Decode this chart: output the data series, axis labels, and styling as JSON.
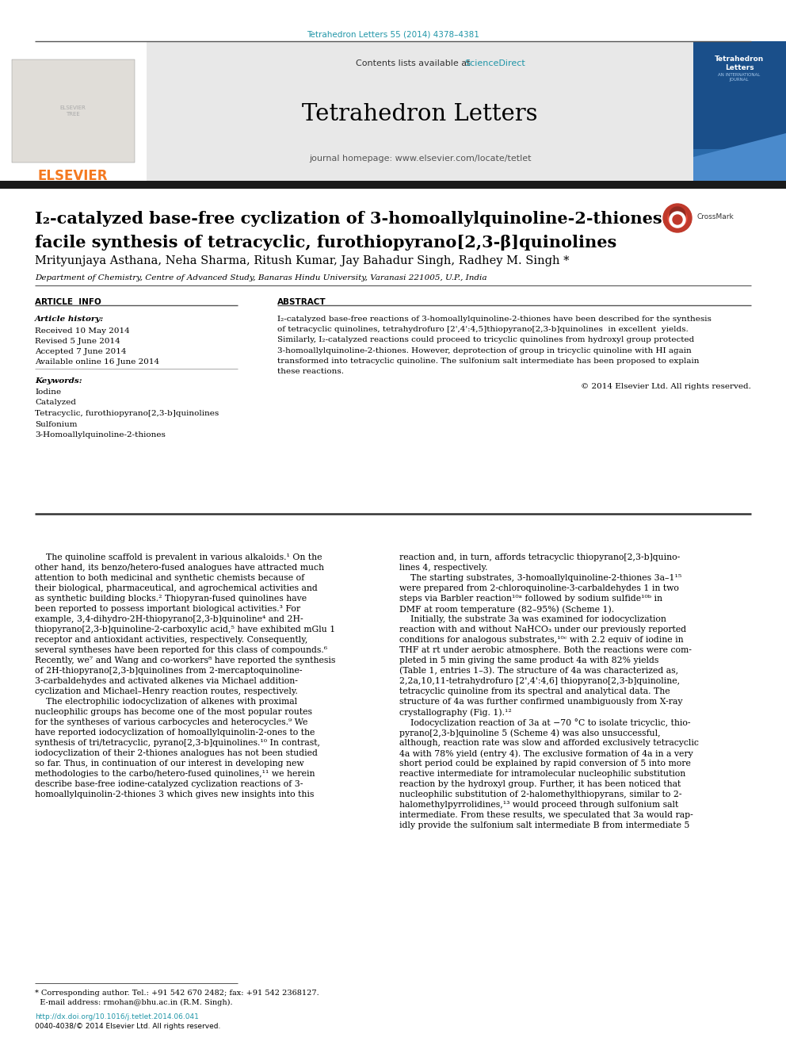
{
  "doi_line": "Tetrahedron Letters 55 (2014) 4378–4381",
  "journal_name": "Tetrahedron Letters",
  "contents_line": "Contents lists available at ",
  "science_direct": "ScienceDirect",
  "journal_homepage": "journal homepage: www.elsevier.com/locate/tetlet",
  "title_line1": "I₂-catalyzed base-free cyclization of 3-homoallylquinoline-2-thiones:",
  "title_line2": "facile synthesis of tetracyclic, furothiopyrano[2,3-β]quinolines",
  "authors": "Mrityunjaya Asthana, Neha Sharma, Ritush Kumar, Jay Bahadur Singh, Radhey M. Singh *",
  "affiliation": "Department of Chemistry, Centre of Advanced Study, Banaras Hindu University, Varanasi 221005, U.P., India",
  "article_info_header": "ARTICLE  INFO",
  "abstract_header": "ABSTRACT",
  "article_history_label": "Article history:",
  "received": "Received 10 May 2014",
  "revised": "Revised 5 June 2014",
  "accepted": "Accepted 7 June 2014",
  "available": "Available online 16 June 2014",
  "keywords_label": "Keywords:",
  "keywords": [
    "Iodine",
    "Catalyzed",
    "Tetracyclic, furothiopyrano[2,3-b]quinolines",
    "Sulfonium",
    "3-Homoallylquinoline-2-thiones"
  ],
  "abstract_lines": [
    "I₂-catalyzed base-free reactions of 3-homoallylquinoline-2-thiones have been described for the synthesis",
    "of tetracyclic quinolines, tetrahydrofuro [2',4':4,5]thiopyrano[2,3-b]quinolines  in excellent  yields.",
    "Similarly, I₂-catalyzed reactions could proceed to tricyclic quinolines from hydroxyl group protected",
    "3-homoallylquinoline-2-thiones. However, deprotection of group in tricyclic quinoline with HI again",
    "transformed into tetracyclic quinoline. The sulfonium salt intermediate has been proposed to explain",
    "these reactions."
  ],
  "copyright": "© 2014 Elsevier Ltd. All rights reserved.",
  "col1_lines": [
    "    The quinoline scaffold is prevalent in various alkaloids.¹ On the",
    "other hand, its benzo/hetero-fused analogues have attracted much",
    "attention to both medicinal and synthetic chemists because of",
    "their biological, pharmaceutical, and agrochemical activities and",
    "as synthetic building blocks.² Thiopyran-fused quinolines have",
    "been reported to possess important biological activities.³ For",
    "example, 3,4-dihydro-2H-thiopyrano[2,3-b]quinoline⁴ and 2H-",
    "thiopyrano[2,3-b]quinoline-2-carboxylic acid,⁵ have exhibited mGlu 1",
    "receptor and antioxidant activities, respectively. Consequently,",
    "several syntheses have been reported for this class of compounds.⁶",
    "Recently, we⁷ and Wang and co-workers⁸ have reported the synthesis",
    "of 2H-thiopyrano[2,3-b]quinolines from 2-mercaptoquinoline-",
    "3-carbaldehydes and activated alkenes via Michael addition-",
    "cyclization and Michael–Henry reaction routes, respectively.",
    "    The electrophilic iodocyclization of alkenes with proximal",
    "nucleophilic groups has become one of the most popular routes",
    "for the syntheses of various carbocycles and heterocycles.⁹ We",
    "have reported iodocyclization of homoallylquinolin-2-ones to the",
    "synthesis of tri/tetracyclic, pyrano[2,3-b]quinolines.¹⁰ In contrast,",
    "iodocyclization of their 2-thiones analogues has not been studied",
    "so far. Thus, in continuation of our interest in developing new",
    "methodologies to the carbo/hetero-fused quinolines,¹¹ we herein",
    "describe base-free iodine-catalyzed cyclization reactions of 3-",
    "homoallylquinolin-2-thiones 3 which gives new insights into this"
  ],
  "col2_lines": [
    "reaction and, in turn, affords tetracyclic thiopyrano[2,3-b]quino-",
    "lines 4, respectively.",
    "    The starting substrates, 3-homoallylquinoline-2-thiones 3a–1¹⁵",
    "were prepared from 2-chloroquinoline-3-carbaldehydes 1 in two",
    "steps via Barbler reaction¹⁰ᵃ followed by sodium sulfide¹⁰ᵇ in",
    "DMF at room temperature (82–95%) (Scheme 1).",
    "    Initially, the substrate 3a was examined for iodocyclization",
    "reaction with and without NaHCO₃ under our previously reported",
    "conditions for analogous substrates,¹⁰ᶜ with 2.2 equiv of iodine in",
    "THF at rt under aerobic atmosphere. Both the reactions were com-",
    "pleted in 5 min giving the same product 4a with 82% yields",
    "(Table 1, entries 1–3). The structure of 4a was characterized as,",
    "2,2a,10,11-tetrahydrofuro [2',4':4,6] thiopyrano[2,3-b]quinoline,",
    "tetracyclic quinoline from its spectral and analytical data. The",
    "structure of 4a was further confirmed unambiguously from X-ray",
    "crystallography (Fig. 1).¹²",
    "    Iodocyclization reaction of 3a at −70 °C to isolate tricyclic, thio-",
    "pyrano[2,3-b]quinoline 5 (Scheme 4) was also unsuccessful,",
    "although, reaction rate was slow and afforded exclusively tetracyclic",
    "4a with 78% yield (entry 4). The exclusive formation of 4a in a very",
    "short period could be explained by rapid conversion of 5 into more",
    "reactive intermediate for intramolecular nucleophilic substitution",
    "reaction by the hydroxyl group. Further, it has been noticed that",
    "nucleophilic substitution of 2-halomethylthiopyrans, similar to 2-",
    "halomethylpyrrolidines,¹³ would proceed through sulfonium salt",
    "intermediate. From these results, we speculated that 3a would rap-",
    "idly provide the sulfonium salt intermediate B from intermediate 5"
  ],
  "footer1": "* Corresponding author. Tel.: +91 542 670 2482; fax: +91 542 2368127.",
  "footer2": "  E-mail address: rmohan@bhu.ac.in (R.M. Singh).",
  "footer_doi": "http://dx.doi.org/10.1016/j.tetlet.2014.06.041",
  "footer_issn": "0040-4038/© 2014 Elsevier Ltd. All rights reserved.",
  "bg": "#ffffff",
  "gray_bg": "#e8e8e8",
  "doi_color": "#2196a8",
  "elsevier_orange": "#f47920",
  "thick_bar": "#1a1a1a"
}
